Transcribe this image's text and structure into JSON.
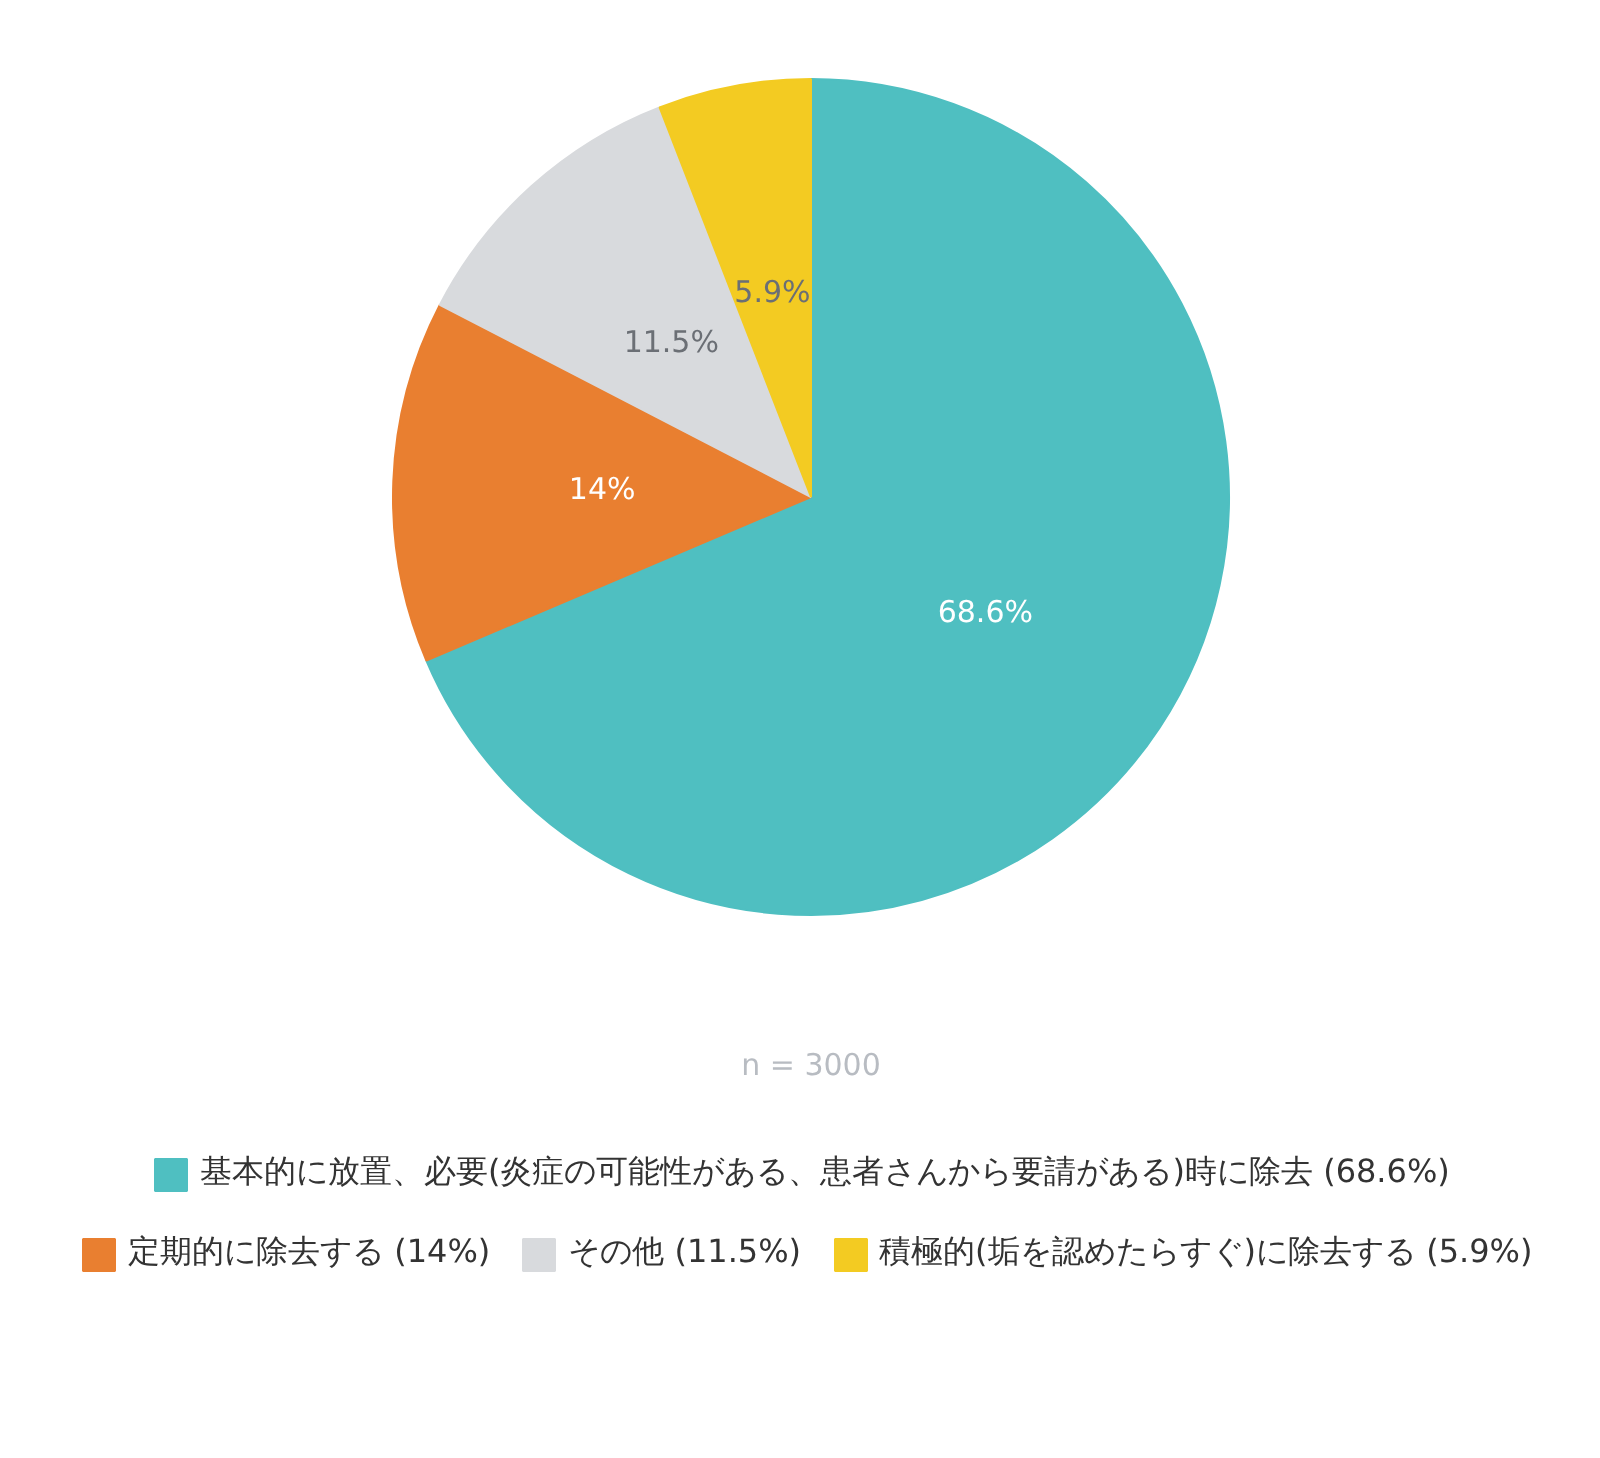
{
  "chart_data": {
    "type": "pie",
    "categories": [
      "基本的に放置、必要(炎症の可能性がある、患者さんから要請がある)時に除去 (68.6%)",
      "定期的に除去する (14%)",
      "その他 (11.5%)",
      "積極的(垢を認めたらすぐ)に除去する (5.9%)"
    ],
    "values": [
      68.6,
      14,
      11.5,
      5.9
    ],
    "colors": [
      "#4fbfc1",
      "#e97f30",
      "#d8dadd",
      "#f3cb22"
    ],
    "value_labels": [
      "68.6%",
      "14%",
      "11.5%",
      "5.9%"
    ],
    "annotations": [
      "n = 3000"
    ],
    "legend": "bottom"
  }
}
